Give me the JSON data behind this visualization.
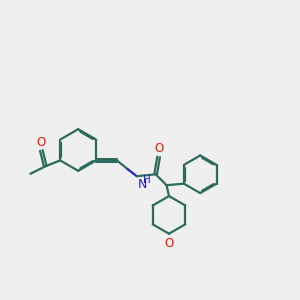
{
  "bg_color": "#efefef",
  "bond_color": "#2d6b5e",
  "oxygen_color": "#ee1100",
  "nitrogen_color": "#2222cc",
  "line_width": 1.6,
  "dbo": 0.025,
  "fs": 8.5,
  "xlim": [
    0.0,
    6.0
  ],
  "ylim": [
    2.0,
    5.5
  ]
}
